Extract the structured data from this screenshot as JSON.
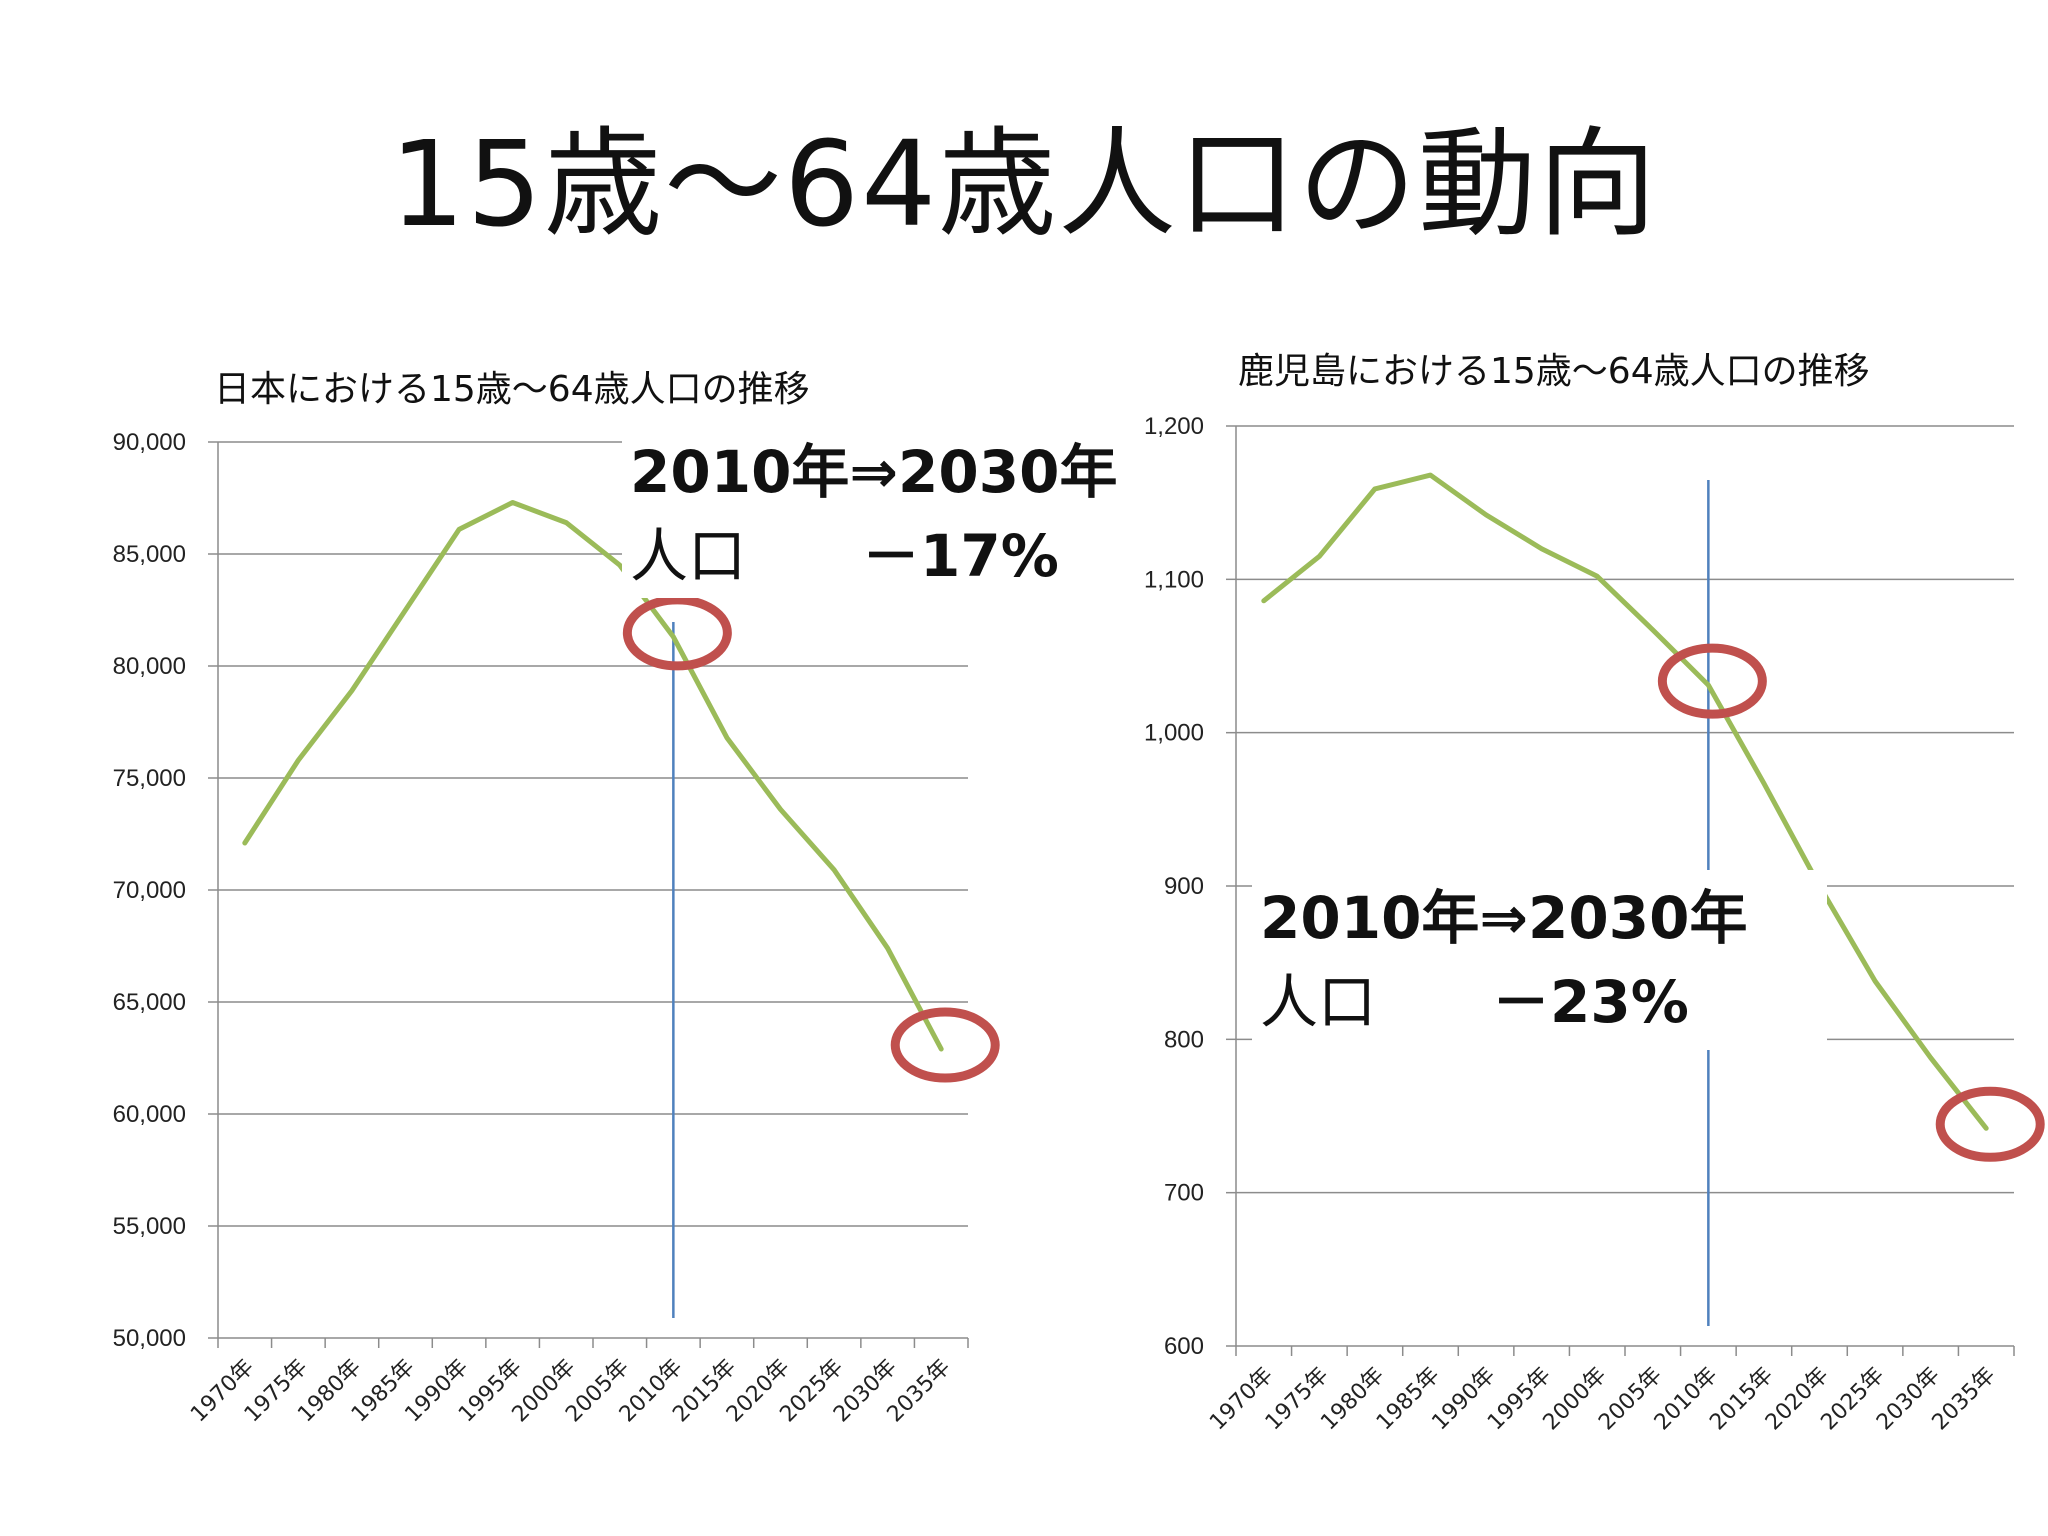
{
  "page": {
    "title": "15歳～64歳人口の動向"
  },
  "chart_data": [
    {
      "type": "line",
      "title": "日本における15歳～64歳人口の推移",
      "categories": [
        "1970年",
        "1975年",
        "1980年",
        "1985年",
        "1990年",
        "1995年",
        "2000年",
        "2005年",
        "2010年",
        "2015年",
        "2020年",
        "2025年",
        "2030年",
        "2035年"
      ],
      "series": [
        {
          "values": [
            72100,
            75800,
            78900,
            82500,
            86100,
            87300,
            86400,
            84500,
            81300,
            76800,
            73600,
            70900,
            67400,
            62900
          ],
          "color": "#9bbb59"
        }
      ],
      "ylim": [
        50000,
        90000
      ],
      "yticks": [
        "50,000",
        "55,000",
        "60,000",
        "65,000",
        "70,000",
        "75,000",
        "80,000",
        "85,000",
        "90,000"
      ],
      "ytick_values": [
        50000,
        55000,
        60000,
        65000,
        70000,
        75000,
        80000,
        85000,
        90000
      ],
      "grid": true,
      "vline_at": "2010年",
      "vline_color": "#4f81bd",
      "highlights": [
        "2010年",
        "2035年"
      ],
      "highlight_color": "#c0504d",
      "annotation": {
        "line1": "2010年⇒2030年",
        "line2_label": "人口",
        "line2_value": "－17%"
      }
    },
    {
      "type": "line",
      "title": "鹿児島における15歳～64歳人口の推移",
      "categories": [
        "1970年",
        "1975年",
        "1980年",
        "1985年",
        "1990年",
        "1995年",
        "2000年",
        "2005年",
        "2010年",
        "2015年",
        "2020年",
        "2025年",
        "2030年",
        "2035年"
      ],
      "series": [
        {
          "values": [
            1086,
            1115,
            1159,
            1168,
            1142,
            1120,
            1102,
            1067,
            1031,
            967,
            900,
            838,
            788,
            742
          ],
          "color": "#9bbb59"
        }
      ],
      "ylim": [
        600,
        1200
      ],
      "yticks": [
        "600",
        "700",
        "800",
        "900",
        "1,000",
        "1,100",
        "1,200"
      ],
      "ytick_values": [
        600,
        700,
        800,
        900,
        1000,
        1100,
        1200
      ],
      "grid": true,
      "vline_at": "2010年",
      "vline_color": "#4f81bd",
      "highlights": [
        "2010年",
        "2035年"
      ],
      "highlight_color": "#c0504d",
      "annotation": {
        "line1": "2010年⇒2030年",
        "line2_label": "人口",
        "line2_value": "－23%"
      }
    }
  ]
}
